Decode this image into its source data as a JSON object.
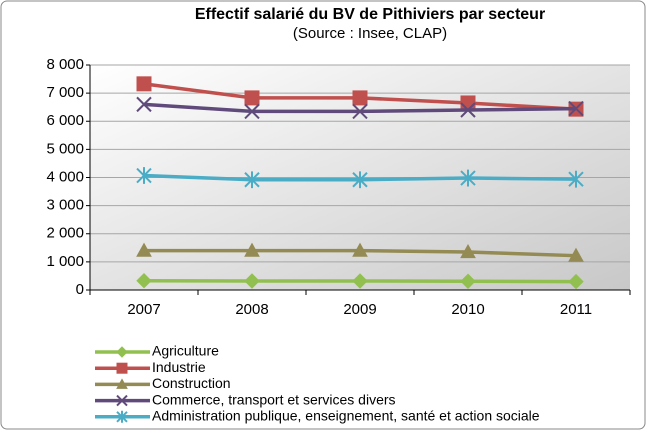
{
  "chart_data": {
    "type": "line",
    "title": "Effectif salarié du BV de Pithiviers par secteur",
    "subtitle": "(Source : Insee, CLAP)",
    "categories": [
      "2007",
      "2008",
      "2009",
      "2010",
      "2011"
    ],
    "series": [
      {
        "name": "Agriculture",
        "color": "#92c050",
        "marker": "diamond",
        "values": [
          330,
          320,
          320,
          310,
          300
        ]
      },
      {
        "name": "Industrie",
        "color": "#c0504d",
        "marker": "square",
        "values": [
          7330,
          6830,
          6830,
          6650,
          6430
        ]
      },
      {
        "name": "Construction",
        "color": "#948a54",
        "marker": "triangle",
        "values": [
          1400,
          1400,
          1400,
          1350,
          1220
        ]
      },
      {
        "name": "Commerce, transport et services divers",
        "color": "#604a7b",
        "marker": "x",
        "values": [
          6600,
          6350,
          6350,
          6400,
          6450
        ]
      },
      {
        "name": "Administration publique, enseignement, santé et action sociale",
        "color": "#4bacc6",
        "marker": "star",
        "values": [
          4070,
          3920,
          3920,
          3980,
          3940
        ]
      }
    ],
    "ylim": [
      0,
      8000
    ],
    "yticks": [
      0,
      {
        "value": 1000,
        "label": "1 000"
      },
      {
        "value": 2000,
        "label": "2 000"
      },
      {
        "value": 3000,
        "label": "3 000"
      },
      {
        "value": 4000,
        "label": "4 000"
      },
      {
        "value": 5000,
        "label": "5 000"
      },
      {
        "value": 6000,
        "label": "6 000"
      },
      {
        "value": 7000,
        "label": "7 000"
      },
      {
        "value": 8000,
        "label": "8 000"
      }
    ],
    "grid": true
  }
}
